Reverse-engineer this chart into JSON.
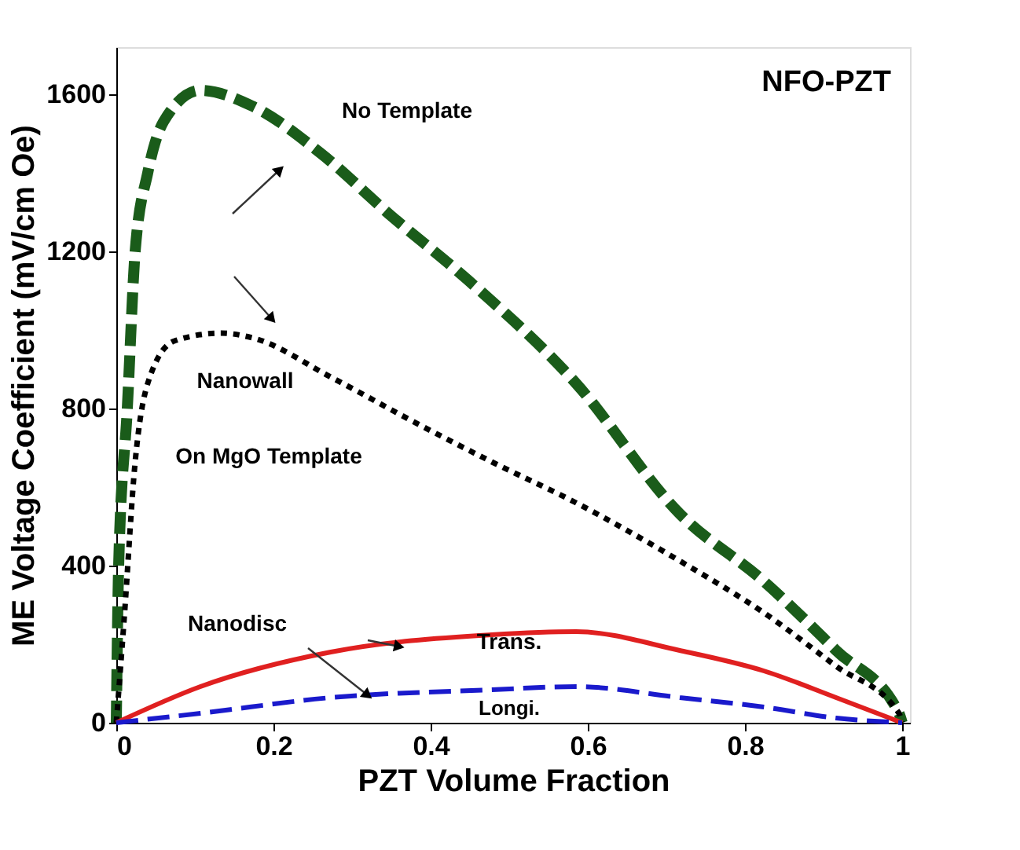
{
  "chart_data": {
    "type": "line",
    "title": "NFO-PZT",
    "xlabel": "PZT Volume Fraction",
    "ylabel": "ME Voltage Coefficient (mV/cm Oe)",
    "xlim": [
      0,
      1.01
    ],
    "ylim": [
      0,
      1720
    ],
    "xticks": [
      0,
      0.2,
      0.4,
      0.6,
      0.8,
      1
    ],
    "yticks": [
      0,
      400,
      800,
      1200,
      1600
    ],
    "grid": false,
    "legend": false,
    "annotations": [
      "Nanowall",
      {
        "text": "Nanodisc",
        "x": 0.32,
        "y": 70
      }
    ],
    "series": [
      {
        "name": "No Template",
        "color": "#1a5c1a",
        "line_style": "dashed",
        "x": [
          0,
          0.003,
          0.014,
          0.024,
          0.04,
          0.06,
          0.107,
          0.173,
          0.26,
          0.35,
          0.44,
          0.585,
          0.717,
          0.824,
          0.916,
          0.996,
          1.0
        ],
        "values": [
          0,
          400,
          800,
          1200,
          1400,
          1530,
          1610,
          1570,
          1450,
          1290,
          1140,
          864,
          532,
          360,
          184,
          24,
          0
        ]
      },
      {
        "name": "On MgO Template",
        "color": "#000000",
        "line_style": "dotted",
        "x": [
          0,
          0.01,
          0.024,
          0.04,
          0.074,
          0.133,
          0.173,
          0.273,
          0.373,
          0.478,
          0.585,
          0.717,
          0.824,
          0.916,
          0.996,
          1.0
        ],
        "values": [
          0,
          264,
          664,
          864,
          972,
          992,
          980,
          880,
          772,
          664,
          560,
          412,
          280,
          144,
          24,
          0
        ]
      },
      {
        "name": "Trans.",
        "color": "#e02020",
        "line_style": "solid",
        "x": [
          0,
          0.107,
          0.273,
          0.478,
          0.585,
          0.717,
          0.824,
          0.916,
          1.0
        ],
        "values": [
          0,
          92,
          180,
          224,
          232,
          184,
          132,
          64,
          0
        ]
      },
      {
        "name": "Longi.",
        "color": "#1a1acc",
        "line_style": "dashed",
        "x": [
          0,
          0.107,
          0.273,
          0.478,
          0.585,
          0.717,
          0.824,
          0.916,
          1.0
        ],
        "values": [
          0,
          24,
          64,
          84,
          92,
          64,
          40,
          12,
          0
        ]
      }
    ]
  }
}
